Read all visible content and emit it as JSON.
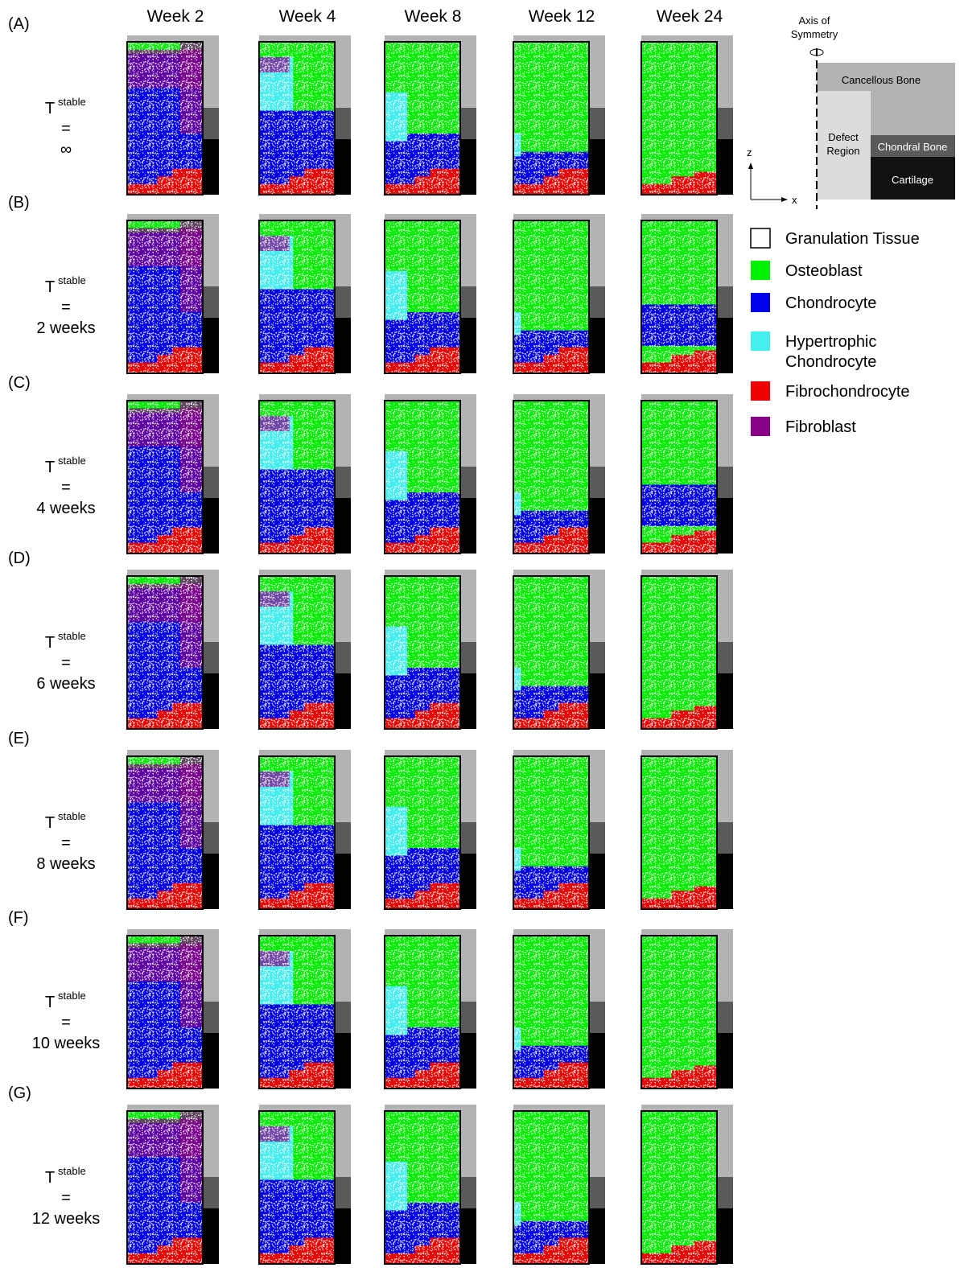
{
  "columns": [
    "Week 2",
    "Week 4",
    "Week 8",
    "Week 12",
    "Week 24"
  ],
  "rows": [
    {
      "letter": "(A)",
      "symbol": "T",
      "superscript": "stable",
      "equals": "=",
      "value": "∞"
    },
    {
      "letter": "(B)",
      "symbol": "T",
      "superscript": "stable",
      "equals": "=",
      "value": "2 weeks"
    },
    {
      "letter": "(C)",
      "symbol": "T",
      "superscript": "stable",
      "equals": "=",
      "value": "4 weeks"
    },
    {
      "letter": "(D)",
      "symbol": "T",
      "superscript": "stable",
      "equals": "=",
      "value": "6 weeks"
    },
    {
      "letter": "(E)",
      "symbol": "T",
      "superscript": "stable",
      "equals": "=",
      "value": "8 weeks"
    },
    {
      "letter": "(F)",
      "symbol": "T",
      "superscript": "stable",
      "equals": "=",
      "value": "10 weeks"
    },
    {
      "letter": "(G)",
      "symbol": "T",
      "superscript": "stable",
      "equals": "=",
      "value": "12 weeks"
    }
  ],
  "legend": [
    {
      "lines": [
        "Granulation Tissue"
      ],
      "color": "#ffffff"
    },
    {
      "lines": [
        "Osteoblast"
      ],
      "color": "#00ee00"
    },
    {
      "lines": [
        "Chondrocyte"
      ],
      "color": "#0000ee"
    },
    {
      "lines": [
        "Hypertrophic",
        "Chondrocyte"
      ],
      "color": "#44eeee"
    },
    {
      "lines": [
        "Fibrochondrocyte"
      ],
      "color": "#ee0000"
    },
    {
      "lines": [
        "Fibroblast"
      ],
      "color": "#880088"
    }
  ],
  "schematic": {
    "axis_label": [
      "Axis of",
      "Symmetry"
    ],
    "cancellous": "Cancellous Bone",
    "defect": [
      "Defect",
      "Region"
    ],
    "chondral": "Chondral Bone",
    "cartilage": "Cartilage",
    "z": "z",
    "x": "x"
  }
}
